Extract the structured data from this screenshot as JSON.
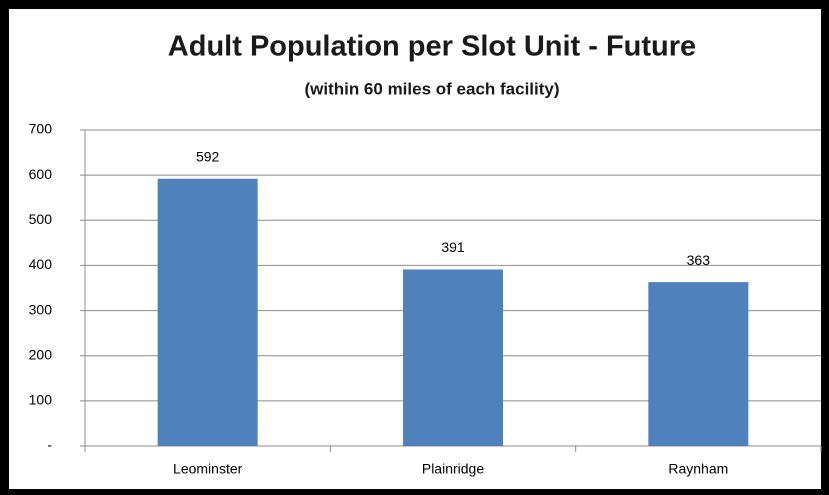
{
  "chart_data": {
    "type": "bar",
    "title": "Adult Population per Slot Unit - Future",
    "subtitle": "(within 60 miles of each facility)",
    "categories": [
      "Leominster",
      "Plainridge",
      "Raynham"
    ],
    "values": [
      592,
      391,
      363
    ],
    "color": "#4f81bd",
    "ylim": [
      0,
      700
    ],
    "yticks": [
      {
        "value": 0,
        "label": "-"
      },
      100,
      200,
      300,
      400,
      500,
      600,
      700
    ],
    "grid": true
  }
}
